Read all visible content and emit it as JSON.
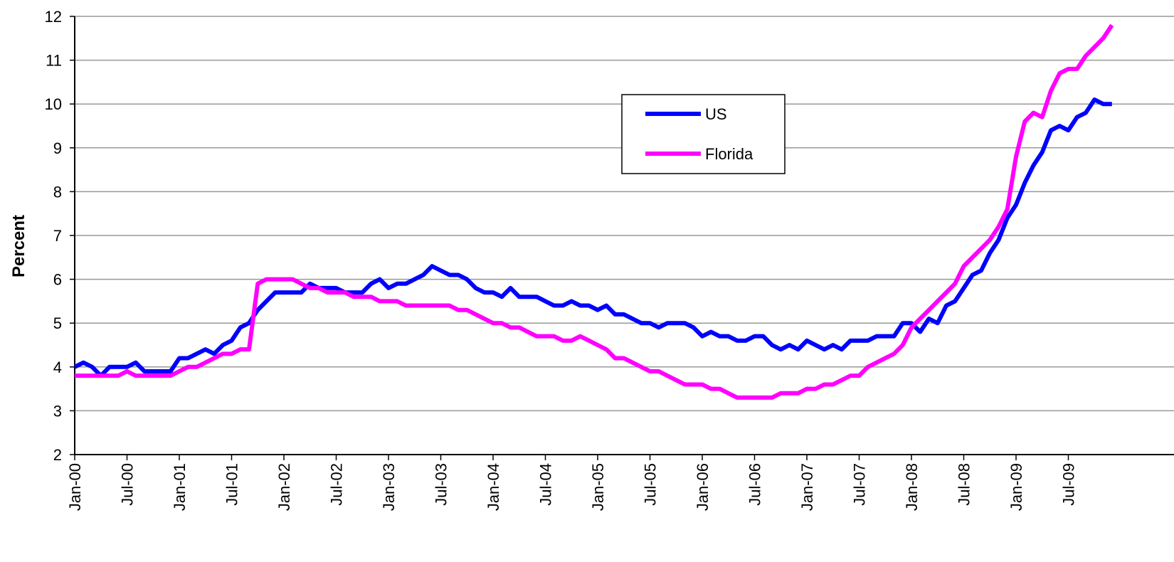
{
  "chart_data": {
    "type": "line",
    "y_label": "Percent",
    "categories": [
      "Jan-00",
      null,
      null,
      null,
      null,
      null,
      "Jul-00",
      null,
      null,
      null,
      null,
      null,
      "Jan-01",
      null,
      null,
      null,
      null,
      null,
      "Jul-01",
      null,
      null,
      null,
      null,
      null,
      "Jan-02",
      null,
      null,
      null,
      null,
      null,
      "Jul-02",
      null,
      null,
      null,
      null,
      null,
      "Jan-03",
      null,
      null,
      null,
      null,
      null,
      "Jul-03",
      null,
      null,
      null,
      null,
      null,
      "Jan-04",
      null,
      null,
      null,
      null,
      null,
      "Jul-04",
      null,
      null,
      null,
      null,
      null,
      "Jan-05",
      null,
      null,
      null,
      null,
      null,
      "Jul-05",
      null,
      null,
      null,
      null,
      null,
      "Jan-06",
      null,
      null,
      null,
      null,
      null,
      "Jul-06",
      null,
      null,
      null,
      null,
      null,
      "Jan-07",
      null,
      null,
      null,
      null,
      null,
      "Jul-07",
      null,
      null,
      null,
      null,
      null,
      "Jan-08",
      null,
      null,
      null,
      null,
      null,
      "Jul-08",
      null,
      null,
      null,
      null,
      null,
      "Jan-09",
      null,
      null,
      null,
      null,
      null,
      "Jul-09",
      null,
      null,
      null,
      null,
      null
    ],
    "series": [
      {
        "name": "US",
        "color": "#0000ff",
        "values": [
          4.0,
          4.1,
          4.0,
          3.8,
          4.0,
          4.0,
          4.0,
          4.1,
          3.9,
          3.9,
          3.9,
          3.9,
          4.2,
          4.2,
          4.3,
          4.4,
          4.3,
          4.5,
          4.6,
          4.9,
          5.0,
          5.3,
          5.5,
          5.7,
          5.7,
          5.7,
          5.7,
          5.9,
          5.8,
          5.8,
          5.8,
          5.7,
          5.7,
          5.7,
          5.9,
          6.0,
          5.8,
          5.9,
          5.9,
          6.0,
          6.1,
          6.3,
          6.2,
          6.1,
          6.1,
          6.0,
          5.8,
          5.7,
          5.7,
          5.6,
          5.8,
          5.6,
          5.6,
          5.6,
          5.5,
          5.4,
          5.4,
          5.5,
          5.4,
          5.4,
          5.3,
          5.4,
          5.2,
          5.2,
          5.1,
          5.0,
          5.0,
          4.9,
          5.0,
          5.0,
          5.0,
          4.9,
          4.7,
          4.8,
          4.7,
          4.7,
          4.6,
          4.6,
          4.7,
          4.7,
          4.5,
          4.4,
          4.5,
          4.4,
          4.6,
          4.5,
          4.4,
          4.5,
          4.4,
          4.6,
          4.6,
          4.6,
          4.7,
          4.7,
          4.7,
          5.0,
          5.0,
          4.8,
          5.1,
          5.0,
          5.4,
          5.5,
          5.8,
          6.1,
          6.2,
          6.6,
          6.9,
          7.4,
          7.7,
          8.2,
          8.6,
          8.9,
          9.4,
          9.5,
          9.4,
          9.7,
          9.8,
          10.1,
          10.0,
          10.0
        ]
      },
      {
        "name": "Florida",
        "color": "#ff00ff",
        "values": [
          3.8,
          3.8,
          3.8,
          3.8,
          3.8,
          3.8,
          3.9,
          3.8,
          3.8,
          3.8,
          3.8,
          3.8,
          3.9,
          4.0,
          4.0,
          4.1,
          4.2,
          4.3,
          4.3,
          4.4,
          4.4,
          5.9,
          6.0,
          6.0,
          6.0,
          6.0,
          5.9,
          5.8,
          5.8,
          5.7,
          5.7,
          5.7,
          5.6,
          5.6,
          5.6,
          5.5,
          5.5,
          5.5,
          5.4,
          5.4,
          5.4,
          5.4,
          5.4,
          5.4,
          5.3,
          5.3,
          5.2,
          5.1,
          5.0,
          5.0,
          4.9,
          4.9,
          4.8,
          4.7,
          4.7,
          4.7,
          4.6,
          4.6,
          4.7,
          4.6,
          4.5,
          4.4,
          4.2,
          4.2,
          4.1,
          4.0,
          3.9,
          3.9,
          3.8,
          3.7,
          3.6,
          3.6,
          3.6,
          3.5,
          3.5,
          3.4,
          3.3,
          3.3,
          3.3,
          3.3,
          3.3,
          3.4,
          3.4,
          3.4,
          3.5,
          3.5,
          3.6,
          3.6,
          3.7,
          3.8,
          3.8,
          4.0,
          4.1,
          4.2,
          4.3,
          4.5,
          4.9,
          5.1,
          5.3,
          5.5,
          5.7,
          5.9,
          6.3,
          6.5,
          6.7,
          6.9,
          7.2,
          7.6,
          8.8,
          9.6,
          9.8,
          9.7,
          10.3,
          10.7,
          10.8,
          10.8,
          11.1,
          11.3,
          11.5,
          11.8
        ]
      }
    ],
    "ylim": [
      2,
      12
    ],
    "yticks": [
      2,
      3,
      4,
      5,
      6,
      7,
      8,
      9,
      10,
      11,
      12
    ],
    "grid": true
  }
}
